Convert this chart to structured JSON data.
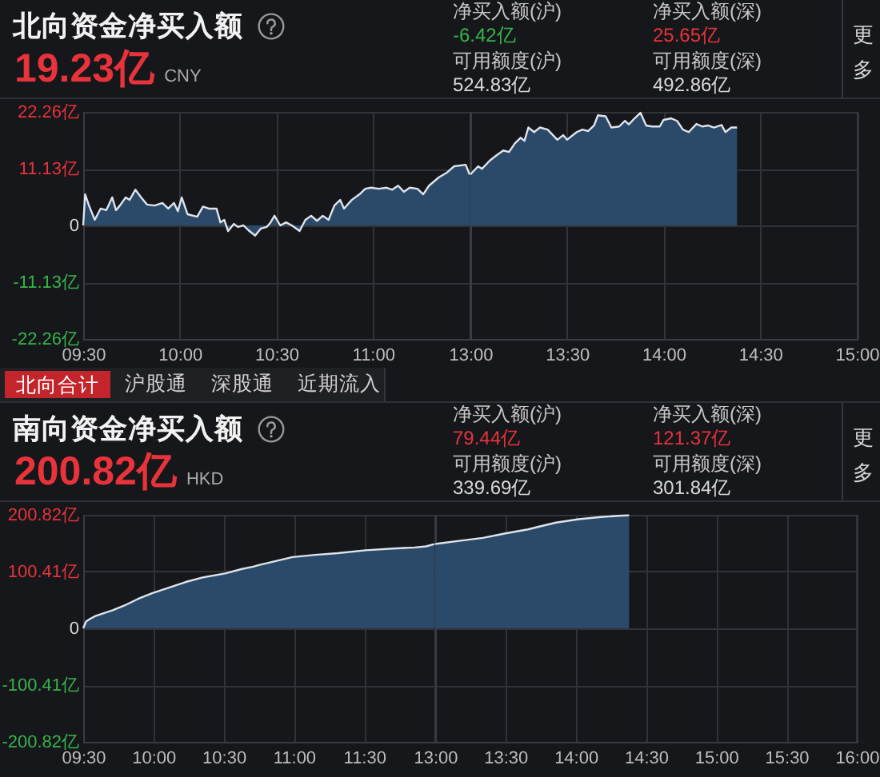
{
  "chart_data": [
    {
      "type": "area",
      "title": "北向资金净买入额",
      "subtitle": "19.23亿",
      "annotations": [
        "CNY",
        "净买入额(沪)",
        "-6.42亿",
        "净买入额(深)",
        "25.65亿",
        "可用额度(沪)",
        "524.83亿",
        "可用额度(深)",
        "492.86亿",
        "更多"
      ],
      "x": [
        9.5,
        9.51,
        9.53,
        9.56,
        9.59,
        9.62,
        9.65,
        9.67,
        9.69,
        9.72,
        9.74,
        9.77,
        9.8,
        9.83,
        9.87,
        9.91,
        9.94,
        9.97,
        9.99,
        10.01,
        10.04,
        10.09,
        10.12,
        10.15,
        10.19,
        10.21,
        10.23,
        10.25,
        10.28,
        10.3,
        10.33,
        10.36,
        10.39,
        10.42,
        10.45,
        10.47,
        10.49,
        10.52,
        10.55,
        10.58,
        10.62,
        10.65,
        10.68,
        10.71,
        10.74,
        10.77,
        10.8,
        10.83,
        10.85,
        10.89,
        10.93,
        10.96,
        10.99,
        11.03,
        11.07,
        11.1,
        11.13,
        11.16,
        11.19,
        11.23,
        11.26,
        11.29,
        11.34,
        11.38,
        11.42,
        11.48,
        11.5
      ],
      "values": [
        0,
        6.1,
        3.9,
        1.1,
        3.3,
        3,
        5.5,
        3,
        3.9,
        5.5,
        5,
        7,
        5.5,
        4.1,
        3.9,
        4.4,
        3.3,
        4.4,
        2.8,
        5.5,
        2.2,
        1.7,
        3.7,
        3.3,
        3.3,
        0.6,
        1.1,
        -1.1,
        0.3,
        -0.3,
        0,
        -1.1,
        -2,
        -0.6,
        -0.3,
        0.6,
        1.9,
        0,
        0.6,
        0,
        -1.1,
        1.1,
        1.9,
        0.9,
        1.9,
        1.1,
        3.9,
        5,
        3.3,
        5,
        6.1,
        7.2,
        7.4,
        7.2,
        7.4,
        7,
        7.8,
        6.6,
        7.4,
        7.2,
        6.1,
        7.8,
        9.4,
        10.3,
        11.6,
        11.9,
        10
      ],
      "color": "#2b4a69",
      "xlim": [
        9.5,
        11.5
      ],
      "xticks": [
        {
          "value": 9.5,
          "label": "09:30"
        },
        {
          "value": 10,
          "label": "10:00"
        },
        {
          "value": 10.5,
          "label": "10:30"
        },
        {
          "value": 11,
          "label": "11:00"
        }
      ],
      "ylim": [
        -22.26,
        22.26
      ],
      "yticks": [
        {
          "value": -22.26,
          "label": "-22.26亿"
        },
        {
          "value": -11.13,
          "label": "-11.13亿"
        },
        0,
        {
          "value": 11.13,
          "label": "11.13亿"
        },
        {
          "value": 22.26,
          "label": "22.26亿"
        }
      ],
      "grid": true
    },
    {
      "type": "area",
      "tick_labels": "x",
      "x": [
        13,
        13.04,
        13.06,
        13.1,
        13.13,
        13.17,
        13.2,
        13.23,
        13.26,
        13.28,
        13.3,
        13.33,
        13.36,
        13.4,
        13.45,
        13.48,
        13.5,
        13.55,
        13.58,
        13.61,
        13.64,
        13.66,
        13.7,
        13.73,
        13.77,
        13.8,
        13.82,
        13.85,
        13.88,
        13.91,
        13.94,
        13.98,
        14,
        14.04,
        14.07,
        14.1,
        14.13,
        14.17,
        14.2,
        14.23,
        14.26,
        14.3,
        14.32,
        14.35,
        14.38
      ],
      "values": [
        10,
        11.6,
        11.1,
        12.7,
        13.6,
        14.7,
        14.4,
        16.1,
        17.2,
        16.6,
        19.2,
        18.3,
        19.2,
        18.8,
        16.8,
        17.7,
        16.8,
        18.3,
        18.8,
        18.5,
        19.6,
        21.6,
        21.4,
        19.2,
        19.4,
        20.5,
        19.8,
        21,
        22.1,
        19.6,
        19.4,
        19.4,
        20.7,
        21,
        20.5,
        18.8,
        18.3,
        19.9,
        19.4,
        19.6,
        19.2,
        19.7,
        18.3,
        19.2,
        19.2
      ],
      "color": "#2b4a69",
      "xlim": [
        13,
        15
      ],
      "xticks": [
        {
          "value": 13,
          "label": "13:00"
        },
        {
          "value": 13.5,
          "label": "13:30"
        },
        {
          "value": 14,
          "label": "14:00"
        },
        {
          "value": 14.5,
          "label": "14:30"
        },
        {
          "value": 15,
          "label": "15:00"
        }
      ],
      "ylim": [
        -22.26,
        22.26
      ],
      "yticks": [
        -22.26,
        -11.13,
        0,
        11.13,
        22.26
      ],
      "grid": true
    },
    {
      "type": "other",
      "annotations": [
        "北向合计",
        "沪股通",
        "深股通",
        "近期流入"
      ]
    },
    {
      "type": "area",
      "title": "南向资金净买入额",
      "subtitle": "200.82亿",
      "annotations": [
        "HKD",
        "净买入额(沪)",
        "79.44亿",
        "净买入额(深)",
        "121.37亿",
        "可用额度(沪)",
        "339.69亿",
        "可用额度(深)",
        "301.84亿",
        "更多"
      ],
      "x": [
        9.5,
        9.52,
        9.55,
        9.59,
        9.65,
        9.71,
        9.79,
        9.89,
        9.99,
        10.11,
        10.23,
        10.35,
        10.51,
        10.63,
        10.71,
        10.75,
        10.87,
        10.99,
        11.15,
        11.31,
        11.51,
        11.7,
        11.86,
        11.94,
        12
      ],
      "values": [
        0,
        12,
        17,
        22,
        27,
        32,
        40,
        52,
        62,
        72,
        82,
        90,
        97,
        105,
        109,
        112,
        119,
        126,
        130,
        133,
        138,
        141,
        143,
        145,
        149
      ],
      "color": "#2b4a69",
      "xlim": [
        9.5,
        12
      ],
      "xticks": [
        {
          "value": 9.5,
          "label": "09:30"
        },
        {
          "value": 10,
          "label": "10:00"
        },
        {
          "value": 10.5,
          "label": "10:30"
        },
        {
          "value": 11,
          "label": "11:00"
        },
        {
          "value": 11.5,
          "label": "11:30"
        }
      ],
      "ylim": [
        -200.82,
        200.82
      ],
      "yticks": [
        {
          "value": -200.82,
          "label": "-200.82亿"
        },
        {
          "value": -100.41,
          "label": "-100.41亿"
        },
        0,
        {
          "value": 100.41,
          "label": "100.41亿"
        },
        {
          "value": 200.82,
          "label": "200.82亿"
        }
      ],
      "grid": true
    },
    {
      "type": "area",
      "tick_labels": "x",
      "x": [
        13,
        13.02,
        13.18,
        13.34,
        13.5,
        13.66,
        13.74,
        13.86,
        14.02,
        14.18,
        14.3,
        14.38
      ],
      "values": [
        149,
        150,
        155,
        160,
        168,
        175,
        180,
        187,
        193,
        197,
        199,
        200
      ],
      "color": "#2b4a69",
      "xlim": [
        13,
        16
      ],
      "xticks": [
        {
          "value": 13,
          "label": "13:00"
        },
        {
          "value": 13.5,
          "label": "13:30"
        },
        {
          "value": 14,
          "label": "14:00"
        },
        {
          "value": 14.5,
          "label": "14:30"
        },
        {
          "value": 15,
          "label": "15:00"
        },
        {
          "value": 15.5,
          "label": "15:30"
        },
        {
          "value": 16,
          "label": "16:00"
        }
      ],
      "ylim": [
        -200.82,
        200.82
      ],
      "yticks": [
        -200.82,
        -100.41,
        0,
        100.41,
        200.82
      ],
      "grid": true
    }
  ]
}
